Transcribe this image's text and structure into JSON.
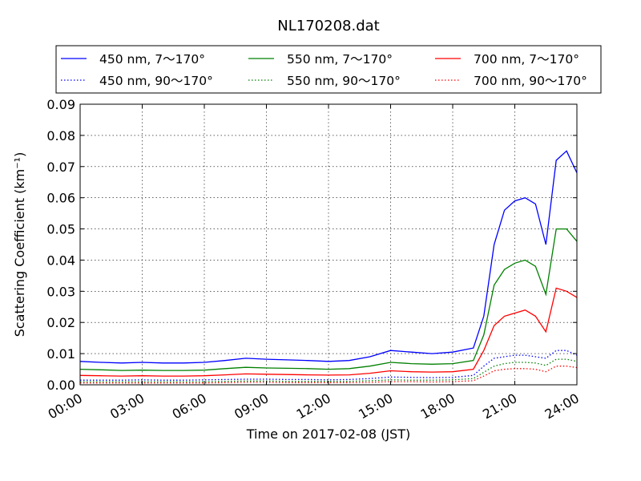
{
  "chart_data": {
    "type": "line",
    "title": "NL170208.dat",
    "xlabel": "Time on 2017-02-08 (JST)",
    "ylabel": "Scattering Coefficient (km⁻¹)",
    "x_unit": "hours",
    "xlim": [
      0,
      24
    ],
    "ylim": [
      0,
      0.09
    ],
    "x_ticks": [
      0,
      3,
      6,
      9,
      12,
      15,
      18,
      21,
      24
    ],
    "x_tick_labels": [
      "00:00",
      "03:00",
      "06:00",
      "09:00",
      "12:00",
      "15:00",
      "18:00",
      "21:00",
      "24:00"
    ],
    "y_ticks": [
      0,
      0.01,
      0.02,
      0.03,
      0.04,
      0.05,
      0.06,
      0.07,
      0.08,
      0.09
    ],
    "y_tick_labels": [
      "0.00",
      "0.01",
      "0.02",
      "0.03",
      "0.04",
      "0.05",
      "0.06",
      "0.07",
      "0.08",
      "0.09"
    ],
    "grid": true,
    "legend_position": "top, above plot",
    "x": [
      0,
      1,
      2,
      3,
      4,
      5,
      6,
      7,
      8,
      9,
      10,
      11,
      12,
      13,
      14,
      15,
      16,
      17,
      18,
      19,
      19.5,
      20,
      20.5,
      21,
      21.5,
      22,
      22.5,
      23,
      23.5,
      24
    ],
    "series": [
      {
        "name": "450 nm, 7～170°",
        "color": "#0000ff",
        "style": "solid",
        "values": [
          0.0075,
          0.0072,
          0.007,
          0.0072,
          0.007,
          0.007,
          0.0072,
          0.0078,
          0.0085,
          0.0082,
          0.008,
          0.0078,
          0.0075,
          0.0078,
          0.009,
          0.011,
          0.0105,
          0.01,
          0.0105,
          0.0118,
          0.022,
          0.045,
          0.056,
          0.059,
          0.06,
          0.058,
          0.045,
          0.072,
          0.075,
          0.068
        ]
      },
      {
        "name": "450 nm, 90～170°",
        "color": "#0000ff",
        "style": "dotted",
        "values": [
          0.0015,
          0.0015,
          0.0015,
          0.0016,
          0.0015,
          0.0015,
          0.0016,
          0.0017,
          0.0018,
          0.0018,
          0.0017,
          0.0017,
          0.0016,
          0.0017,
          0.002,
          0.0025,
          0.0024,
          0.0023,
          0.0024,
          0.003,
          0.006,
          0.0085,
          0.009,
          0.0095,
          0.0095,
          0.009,
          0.0085,
          0.011,
          0.011,
          0.0095
        ]
      },
      {
        "name": "550 nm, 7～170°",
        "color": "#008000",
        "style": "solid",
        "values": [
          0.005,
          0.0048,
          0.0046,
          0.0047,
          0.0046,
          0.0046,
          0.0047,
          0.0052,
          0.0056,
          0.0054,
          0.0053,
          0.0052,
          0.005,
          0.0052,
          0.006,
          0.0072,
          0.0068,
          0.0066,
          0.0068,
          0.0078,
          0.016,
          0.032,
          0.037,
          0.039,
          0.04,
          0.038,
          0.029,
          0.05,
          0.05,
          0.046
        ]
      },
      {
        "name": "550 nm, 90～170°",
        "color": "#008000",
        "style": "dotted",
        "values": [
          0.001,
          0.001,
          0.001,
          0.001,
          0.001,
          0.001,
          0.001,
          0.0011,
          0.0012,
          0.0012,
          0.0011,
          0.0011,
          0.0011,
          0.0011,
          0.0013,
          0.0016,
          0.0015,
          0.0015,
          0.0016,
          0.002,
          0.004,
          0.006,
          0.0068,
          0.0072,
          0.0072,
          0.007,
          0.0062,
          0.0082,
          0.0082,
          0.0075
        ]
      },
      {
        "name": "700 nm, 7～170°",
        "color": "#ff0000",
        "style": "solid",
        "values": [
          0.003,
          0.0029,
          0.0028,
          0.0029,
          0.0028,
          0.0028,
          0.0029,
          0.0032,
          0.0035,
          0.0034,
          0.0033,
          0.0032,
          0.0031,
          0.0032,
          0.0037,
          0.0045,
          0.0042,
          0.0041,
          0.0042,
          0.005,
          0.011,
          0.019,
          0.022,
          0.023,
          0.024,
          0.022,
          0.017,
          0.031,
          0.03,
          0.028
        ]
      },
      {
        "name": "700 nm, 90～170°",
        "color": "#ff0000",
        "style": "dotted",
        "values": [
          0.0006,
          0.0006,
          0.0006,
          0.0006,
          0.0006,
          0.0006,
          0.0006,
          0.0007,
          0.0008,
          0.0008,
          0.0007,
          0.0007,
          0.0007,
          0.0007,
          0.0008,
          0.001,
          0.001,
          0.0009,
          0.001,
          0.0013,
          0.0028,
          0.0045,
          0.005,
          0.0052,
          0.0052,
          0.005,
          0.0042,
          0.006,
          0.006,
          0.0055
        ]
      }
    ]
  }
}
